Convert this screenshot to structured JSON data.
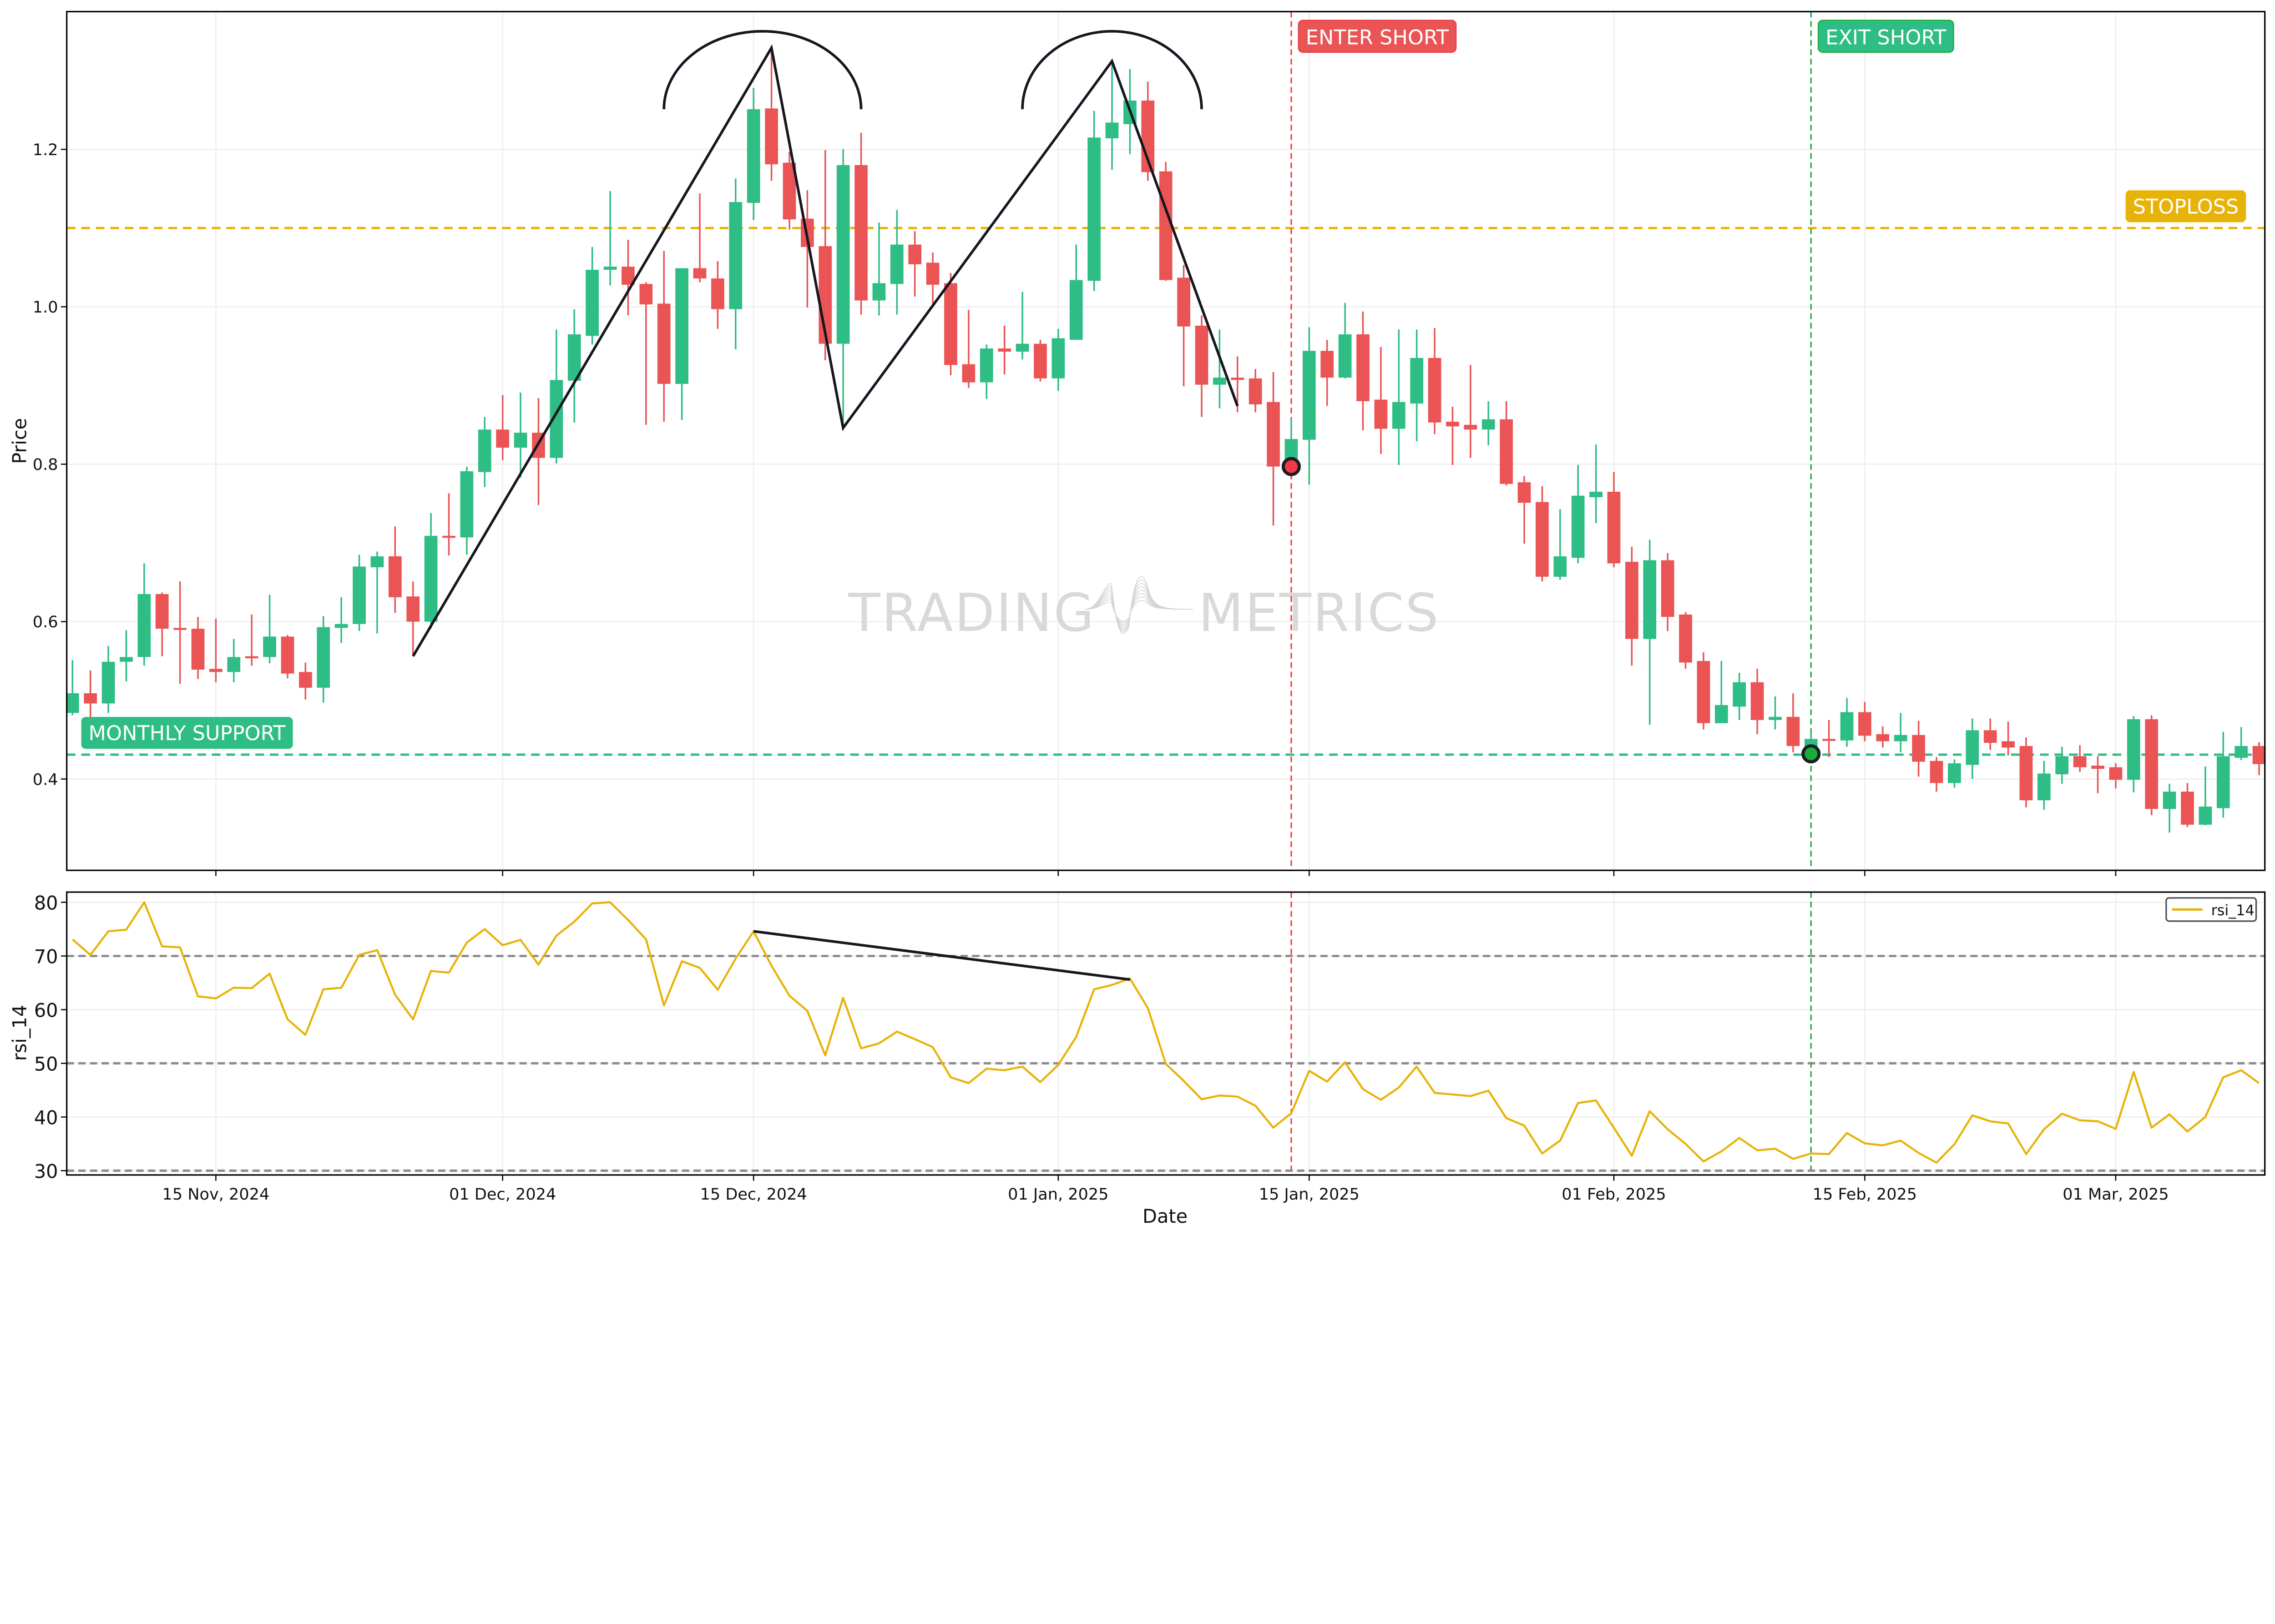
{
  "watermark": {
    "left": "TRADING",
    "right": "METRICS"
  },
  "chart_data": [
    {
      "type": "candlestick",
      "xlabel": "",
      "ylabel": "Price",
      "ylim": [
        0.284,
        1.375
      ],
      "yticks": [
        0.4,
        0.6,
        0.8,
        1.0,
        1.2
      ],
      "ytick_labels": [
        "0.4",
        "0.6",
        "0.8",
        "1.0",
        "1.2"
      ],
      "xlim": [
        "2024-11-07",
        "2025-03-09"
      ],
      "grid": true,
      "colors": {
        "up": "#2ebd85",
        "down": "#ea5455"
      },
      "candle_fields": [
        "date",
        "open",
        "high",
        "low",
        "close"
      ],
      "candles": [
        [
          "2024-11-07",
          0.484,
          0.551,
          0.481,
          0.509
        ],
        [
          "2024-11-08",
          0.509,
          0.538,
          0.478,
          0.496
        ],
        [
          "2024-11-09",
          0.496,
          0.569,
          0.484,
          0.549
        ],
        [
          "2024-11-10",
          0.549,
          0.589,
          0.524,
          0.555
        ],
        [
          "2024-11-11",
          0.555,
          0.674,
          0.544,
          0.635
        ],
        [
          "2024-11-12",
          0.635,
          0.637,
          0.556,
          0.591
        ],
        [
          "2024-11-13",
          0.592,
          0.651,
          0.521,
          0.59
        ],
        [
          "2024-11-14",
          0.591,
          0.606,
          0.527,
          0.539
        ],
        [
          "2024-11-15",
          0.54,
          0.604,
          0.523,
          0.536
        ],
        [
          "2024-11-16",
          0.536,
          0.578,
          0.523,
          0.555
        ],
        [
          "2024-11-17",
          0.556,
          0.609,
          0.544,
          0.555
        ],
        [
          "2024-11-18",
          0.555,
          0.634,
          0.547,
          0.581
        ],
        [
          "2024-11-19",
          0.581,
          0.583,
          0.528,
          0.534
        ],
        [
          "2024-11-20",
          0.536,
          0.548,
          0.501,
          0.516
        ],
        [
          "2024-11-21",
          0.516,
          0.607,
          0.497,
          0.593
        ],
        [
          "2024-11-22",
          0.592,
          0.631,
          0.573,
          0.597
        ],
        [
          "2024-11-23",
          0.597,
          0.685,
          0.588,
          0.67
        ],
        [
          "2024-11-24",
          0.669,
          0.689,
          0.585,
          0.683
        ],
        [
          "2024-11-25",
          0.683,
          0.721,
          0.611,
          0.631
        ],
        [
          "2024-11-26",
          0.632,
          0.651,
          0.558,
          0.6
        ],
        [
          "2024-11-27",
          0.6,
          0.738,
          0.591,
          0.709
        ],
        [
          "2024-11-28",
          0.709,
          0.763,
          0.684,
          0.707
        ],
        [
          "2024-11-29",
          0.707,
          0.797,
          0.685,
          0.791
        ],
        [
          "2024-11-30",
          0.79,
          0.86,
          0.771,
          0.844
        ],
        [
          "2024-12-01",
          0.844,
          0.888,
          0.805,
          0.821
        ],
        [
          "2024-12-02",
          0.821,
          0.891,
          0.783,
          0.84
        ],
        [
          "2024-12-03",
          0.84,
          0.884,
          0.748,
          0.808
        ],
        [
          "2024-12-04",
          0.808,
          0.971,
          0.801,
          0.907
        ],
        [
          "2024-12-05",
          0.906,
          0.997,
          0.853,
          0.965
        ],
        [
          "2024-12-06",
          0.963,
          1.076,
          0.952,
          1.047
        ],
        [
          "2024-12-07",
          1.047,
          1.147,
          1.027,
          1.051
        ],
        [
          "2024-12-08",
          1.051,
          1.085,
          0.989,
          1.028
        ],
        [
          "2024-12-09",
          1.029,
          1.031,
          0.85,
          1.003
        ],
        [
          "2024-12-10",
          1.004,
          1.071,
          0.854,
          0.902
        ],
        [
          "2024-12-11",
          0.902,
          1.049,
          0.856,
          1.049
        ],
        [
          "2024-12-12",
          1.049,
          1.144,
          1.031,
          1.036
        ],
        [
          "2024-12-13",
          1.036,
          1.058,
          0.972,
          0.997
        ],
        [
          "2024-12-14",
          0.997,
          1.163,
          0.946,
          1.133
        ],
        [
          "2024-12-15",
          1.132,
          1.278,
          1.11,
          1.251
        ],
        [
          "2024-12-16",
          1.252,
          1.329,
          1.16,
          1.181
        ],
        [
          "2024-12-17",
          1.183,
          1.197,
          1.098,
          1.111
        ],
        [
          "2024-12-18",
          1.112,
          1.148,
          0.999,
          1.076
        ],
        [
          "2024-12-19",
          1.077,
          1.199,
          0.932,
          0.953
        ],
        [
          "2024-12-20",
          0.953,
          1.2,
          0.846,
          1.18
        ],
        [
          "2024-12-21",
          1.18,
          1.221,
          0.99,
          1.008
        ],
        [
          "2024-12-22",
          1.008,
          1.107,
          0.989,
          1.03
        ],
        [
          "2024-12-23",
          1.029,
          1.123,
          0.99,
          1.079
        ],
        [
          "2024-12-24",
          1.079,
          1.096,
          1.013,
          1.054
        ],
        [
          "2024-12-25",
          1.056,
          1.069,
          1.003,
          1.028
        ],
        [
          "2024-12-26",
          1.03,
          1.043,
          0.913,
          0.926
        ],
        [
          "2024-12-27",
          0.927,
          0.996,
          0.897,
          0.904
        ],
        [
          "2024-12-28",
          0.904,
          0.952,
          0.883,
          0.947
        ],
        [
          "2024-12-29",
          0.947,
          0.976,
          0.914,
          0.943
        ],
        [
          "2024-12-30",
          0.943,
          1.019,
          0.933,
          0.953
        ],
        [
          "2024-12-31",
          0.953,
          0.958,
          0.905,
          0.909
        ],
        [
          "2025-01-01",
          0.909,
          0.972,
          0.893,
          0.96
        ],
        [
          "2025-01-02",
          0.958,
          1.079,
          0.958,
          1.034
        ],
        [
          "2025-01-03",
          1.033,
          1.249,
          1.02,
          1.215
        ],
        [
          "2025-01-04",
          1.214,
          1.312,
          1.174,
          1.234
        ],
        [
          "2025-01-05",
          1.232,
          1.302,
          1.194,
          1.262
        ],
        [
          "2025-01-06",
          1.262,
          1.286,
          1.16,
          1.171
        ],
        [
          "2025-01-07",
          1.172,
          1.184,
          1.033,
          1.034
        ],
        [
          "2025-01-08",
          1.037,
          1.053,
          0.899,
          0.975
        ],
        [
          "2025-01-09",
          0.976,
          0.989,
          0.86,
          0.901
        ],
        [
          "2025-01-10",
          0.901,
          0.971,
          0.871,
          0.91
        ],
        [
          "2025-01-11",
          0.91,
          0.937,
          0.866,
          0.907
        ],
        [
          "2025-01-12",
          0.909,
          0.921,
          0.866,
          0.876
        ],
        [
          "2025-01-13",
          0.879,
          0.917,
          0.722,
          0.797
        ],
        [
          "2025-01-14",
          0.797,
          0.857,
          0.784,
          0.832
        ],
        [
          "2025-01-15",
          0.831,
          0.974,
          0.774,
          0.944
        ],
        [
          "2025-01-16",
          0.944,
          0.958,
          0.874,
          0.91
        ],
        [
          "2025-01-17",
          0.91,
          1.005,
          0.909,
          0.965
        ],
        [
          "2025-01-18",
          0.965,
          0.994,
          0.843,
          0.88
        ],
        [
          "2025-01-19",
          0.882,
          0.949,
          0.813,
          0.845
        ],
        [
          "2025-01-20",
          0.845,
          0.971,
          0.799,
          0.879
        ],
        [
          "2025-01-21",
          0.877,
          0.971,
          0.829,
          0.935
        ],
        [
          "2025-01-22",
          0.935,
          0.973,
          0.838,
          0.853
        ],
        [
          "2025-01-23",
          0.854,
          0.873,
          0.799,
          0.848
        ],
        [
          "2025-01-24",
          0.85,
          0.926,
          0.808,
          0.844
        ],
        [
          "2025-01-25",
          0.844,
          0.88,
          0.824,
          0.857
        ],
        [
          "2025-01-26",
          0.857,
          0.88,
          0.773,
          0.775
        ],
        [
          "2025-01-27",
          0.777,
          0.785,
          0.699,
          0.751
        ],
        [
          "2025-01-28",
          0.752,
          0.772,
          0.651,
          0.657
        ],
        [
          "2025-01-29",
          0.657,
          0.743,
          0.653,
          0.683
        ],
        [
          "2025-01-30",
          0.681,
          0.799,
          0.674,
          0.76
        ],
        [
          "2025-01-31",
          0.758,
          0.825,
          0.725,
          0.765
        ],
        [
          "2025-02-01",
          0.765,
          0.79,
          0.669,
          0.674
        ],
        [
          "2025-02-02",
          0.676,
          0.695,
          0.544,
          0.578
        ],
        [
          "2025-02-03",
          0.578,
          0.704,
          0.469,
          0.678
        ],
        [
          "2025-02-04",
          0.678,
          0.687,
          0.588,
          0.606
        ],
        [
          "2025-02-05",
          0.609,
          0.612,
          0.54,
          0.548
        ],
        [
          "2025-02-06",
          0.55,
          0.561,
          0.463,
          0.471
        ],
        [
          "2025-02-07",
          0.471,
          0.55,
          0.471,
          0.494
        ],
        [
          "2025-02-08",
          0.492,
          0.535,
          0.475,
          0.523
        ],
        [
          "2025-02-09",
          0.523,
          0.54,
          0.457,
          0.475
        ],
        [
          "2025-02-10",
          0.475,
          0.505,
          0.463,
          0.479
        ],
        [
          "2025-02-11",
          0.479,
          0.509,
          0.434,
          0.442
        ],
        [
          "2025-02-12",
          0.441,
          0.459,
          0.428,
          0.451
        ],
        [
          "2025-02-13",
          0.451,
          0.475,
          0.428,
          0.449
        ],
        [
          "2025-02-14",
          0.449,
          0.503,
          0.441,
          0.485
        ],
        [
          "2025-02-15",
          0.485,
          0.498,
          0.448,
          0.455
        ],
        [
          "2025-02-16",
          0.457,
          0.467,
          0.44,
          0.448
        ],
        [
          "2025-02-17",
          0.448,
          0.484,
          0.434,
          0.456
        ],
        [
          "2025-02-18",
          0.456,
          0.474,
          0.403,
          0.422
        ],
        [
          "2025-02-19",
          0.423,
          0.428,
          0.384,
          0.395
        ],
        [
          "2025-02-20",
          0.395,
          0.425,
          0.389,
          0.42
        ],
        [
          "2025-02-21",
          0.418,
          0.477,
          0.4,
          0.462
        ],
        [
          "2025-02-22",
          0.462,
          0.477,
          0.437,
          0.446
        ],
        [
          "2025-02-23",
          0.448,
          0.473,
          0.43,
          0.44
        ],
        [
          "2025-02-24",
          0.442,
          0.453,
          0.364,
          0.373
        ],
        [
          "2025-02-25",
          0.373,
          0.423,
          0.361,
          0.407
        ],
        [
          "2025-02-26",
          0.406,
          0.441,
          0.394,
          0.429
        ],
        [
          "2025-02-27",
          0.429,
          0.443,
          0.409,
          0.415
        ],
        [
          "2025-02-28",
          0.417,
          0.429,
          0.382,
          0.413
        ],
        [
          "2025-03-01",
          0.415,
          0.42,
          0.388,
          0.399
        ],
        [
          "2025-03-02",
          0.399,
          0.48,
          0.383,
          0.476
        ],
        [
          "2025-03-03",
          0.476,
          0.481,
          0.354,
          0.362
        ],
        [
          "2025-03-04",
          0.362,
          0.394,
          0.332,
          0.384
        ],
        [
          "2025-03-05",
          0.384,
          0.395,
          0.339,
          0.342
        ],
        [
          "2025-03-06",
          0.342,
          0.416,
          0.341,
          0.365
        ],
        [
          "2025-03-07",
          0.363,
          0.46,
          0.351,
          0.429
        ],
        [
          "2025-03-08",
          0.427,
          0.466,
          0.424,
          0.442
        ],
        [
          "2025-03-09",
          0.442,
          0.447,
          0.405,
          0.419
        ]
      ],
      "hlines": [
        {
          "label": "STOPLOSS",
          "value": 1.1,
          "color": "#e8b308"
        },
        {
          "label": "MONTHLY SUPPORT",
          "value": 0.431,
          "color": "#2ebd85"
        }
      ],
      "vlines": [
        {
          "label": "ENTER SHORT",
          "date": "2025-01-14",
          "color": "#ef3b48",
          "label_color": "#ea5455"
        },
        {
          "label": "EXIT SHORT",
          "date": "2025-02-12",
          "color": "#1aab3a",
          "label_color": "#2ebd85"
        }
      ],
      "markers": [
        {
          "date": "2025-01-14",
          "value": 0.797,
          "color": "#f03a47"
        },
        {
          "date": "2025-02-12",
          "value": 0.432,
          "color": "#1aab3a"
        }
      ],
      "pattern_line": [
        [
          "2024-11-26",
          0.556
        ],
        [
          "2024-12-16",
          1.329
        ],
        [
          "2024-12-20",
          0.846
        ],
        [
          "2025-01-04",
          1.312
        ],
        [
          "2025-01-11",
          0.874
        ]
      ],
      "arcs": [
        {
          "from": "2024-12-10",
          "to": "2024-12-21",
          "base": 1.251,
          "peak": 1.35
        },
        {
          "from": "2024-12-30",
          "to": "2025-01-09",
          "base": 1.251,
          "peak": 1.35
        }
      ]
    },
    {
      "type": "line",
      "xlabel": "Date",
      "ylabel": "rsi_14",
      "ylim": [
        29.2,
        81.9
      ],
      "yticks": [
        30,
        40,
        50,
        60,
        70,
        80
      ],
      "ytick_labels": [
        "30",
        "40",
        "50",
        "60",
        "70",
        "80"
      ],
      "xticks": [
        {
          "date": "2024-11-15",
          "label": "15 Nov, 2024"
        },
        {
          "date": "2024-12-01",
          "label": "01 Dec, 2024"
        },
        {
          "date": "2024-12-15",
          "label": "15 Dec, 2024"
        },
        {
          "date": "2025-01-01",
          "label": "01 Jan, 2025"
        },
        {
          "date": "2025-01-15",
          "label": "15 Jan, 2025"
        },
        {
          "date": "2025-02-01",
          "label": "01 Feb, 2025"
        },
        {
          "date": "2025-02-15",
          "label": "15 Feb, 2025"
        },
        {
          "date": "2025-03-01",
          "label": "01 Mar, 2025"
        }
      ],
      "grid": true,
      "legend": "top-right",
      "levels": [
        70,
        50,
        30
      ],
      "level_color": "#8c8c8c",
      "series": [
        {
          "name": "rsi_14",
          "color": "#e8b308",
          "start": "2024-11-07",
          "values": [
            73.1,
            70.2,
            74.6,
            74.9,
            80.0,
            71.8,
            71.6,
            62.5,
            62.1,
            64.1,
            64.0,
            66.7,
            58.2,
            55.3,
            63.8,
            64.1,
            70.2,
            71.1,
            62.8,
            58.2,
            67.2,
            66.9,
            72.5,
            75.0,
            72.0,
            73.0,
            68.4,
            73.8,
            76.4,
            79.8,
            80.0,
            76.7,
            73.1,
            60.8,
            69.0,
            67.8,
            63.7,
            69.5,
            74.6,
            68.2,
            62.6,
            59.8,
            51.5,
            62.2,
            52.8,
            53.7,
            55.9,
            54.5,
            53.0,
            47.4,
            46.3,
            49.0,
            48.7,
            49.4,
            46.5,
            49.7,
            54.9,
            63.8,
            64.6,
            65.8,
            60.3,
            49.9,
            46.7,
            43.3,
            44.0,
            43.8,
            42.1,
            38.0,
            40.7,
            48.6,
            46.6,
            50.2,
            45.2,
            43.2,
            45.5,
            49.4,
            44.5,
            44.2,
            43.9,
            44.9,
            39.8,
            38.4,
            33.2,
            35.6,
            42.6,
            43.1,
            38.0,
            32.8,
            41.1,
            37.7,
            35.0,
            31.7,
            33.6,
            36.1,
            33.8,
            34.1,
            32.2,
            33.2,
            33.1,
            37.0,
            35.1,
            34.7,
            35.6,
            33.3,
            31.5,
            34.9,
            40.3,
            39.2,
            38.8,
            33.1,
            37.7,
            40.6,
            39.4,
            39.2,
            37.8,
            48.4,
            38.0,
            40.5,
            37.3,
            40.0,
            47.4,
            48.7,
            46.3
          ]
        }
      ],
      "divergence_line": [
        [
          "2024-12-15",
          74.6
        ],
        [
          "2025-01-05",
          65.6
        ]
      ]
    }
  ]
}
